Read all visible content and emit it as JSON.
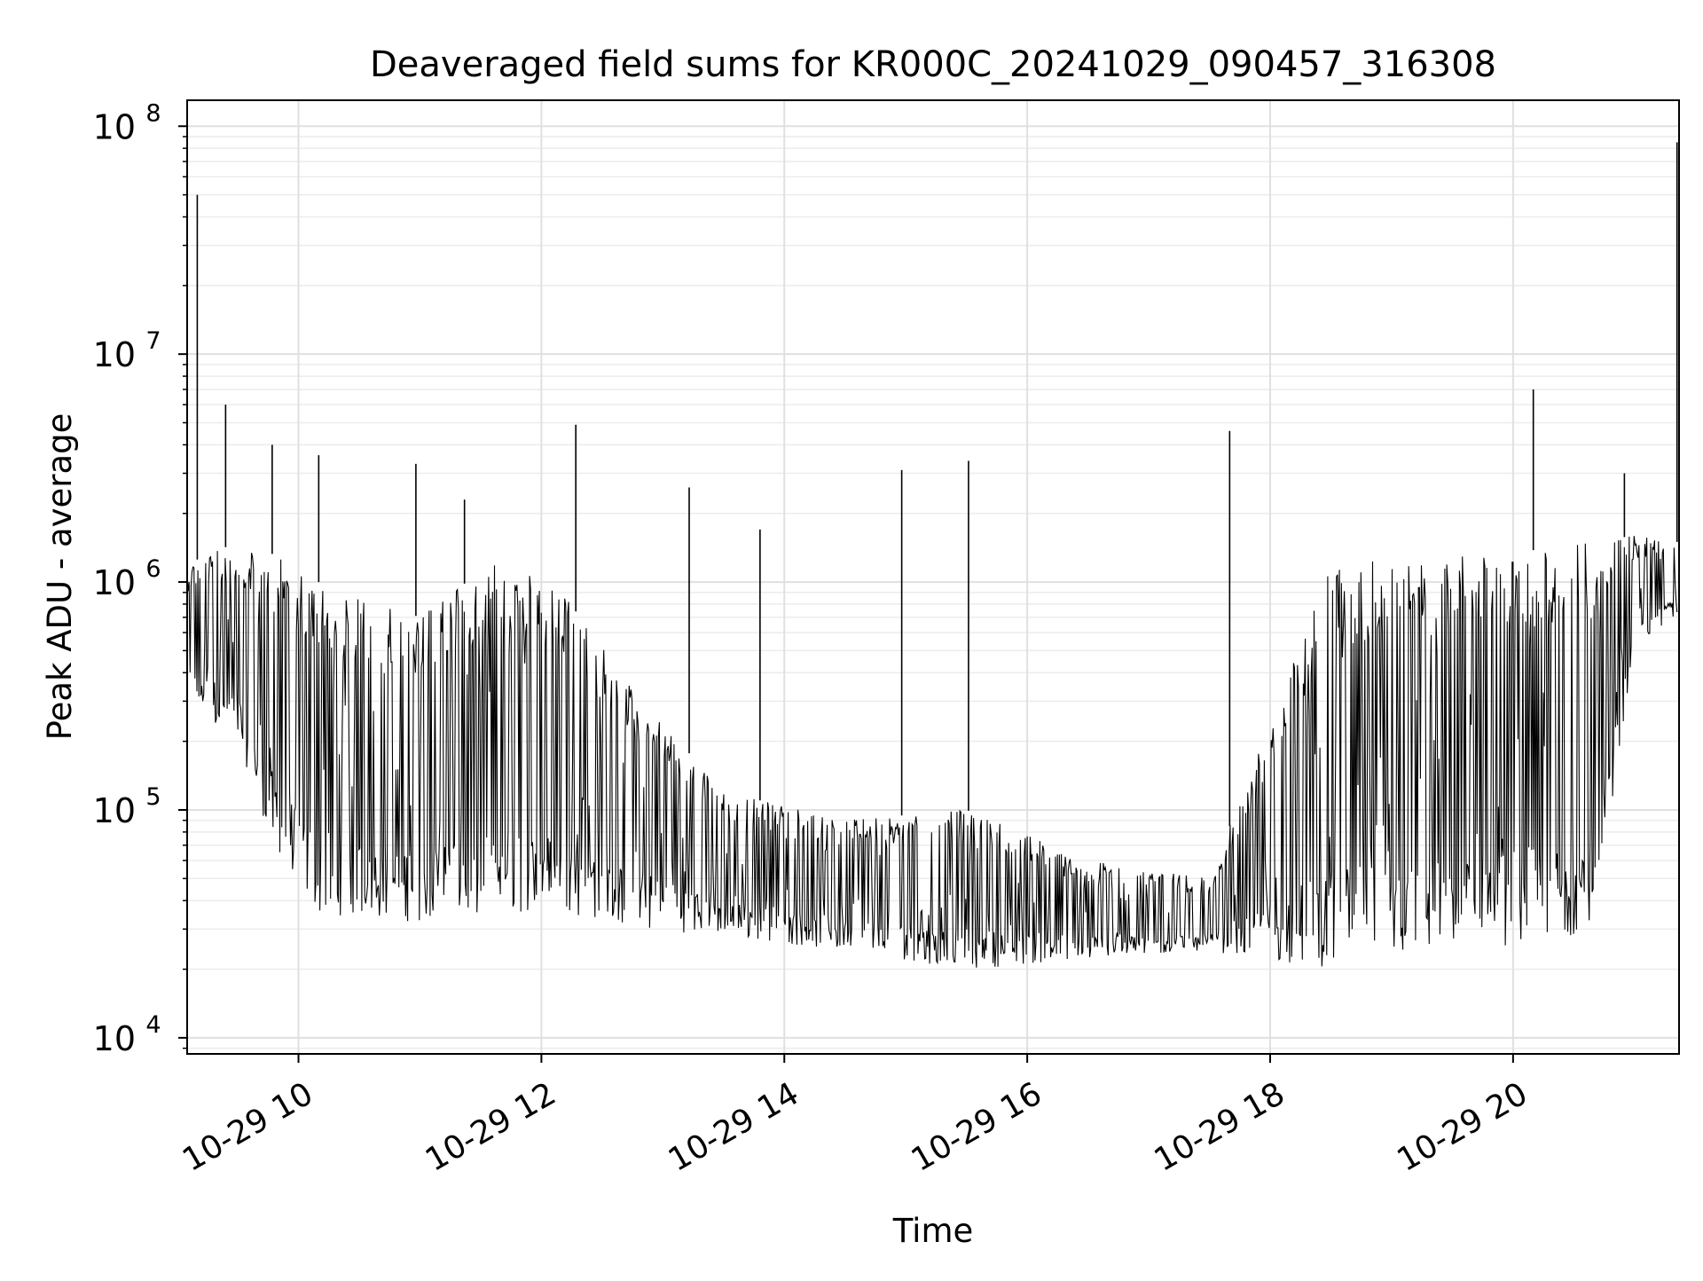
{
  "chart_data": {
    "type": "line",
    "title": "Deaveraged field sums for KR000C_20241029_090457_316308",
    "xlabel": "Time",
    "ylabel": "Peak ADU - average",
    "x_axis": {
      "kind": "datetime",
      "range": [
        "2024-10-29 09:05",
        "2024-10-29 21:22"
      ],
      "ticks": [
        "10-29 10",
        "10-29 12",
        "10-29 14",
        "10-29 16",
        "10-29 18",
        "10-29 20"
      ],
      "tick_values": [
        "2024-10-29 10:00",
        "2024-10-29 12:00",
        "2024-10-29 14:00",
        "2024-10-29 16:00",
        "2024-10-29 18:00",
        "2024-10-29 20:00"
      ],
      "tick_rotation_deg": 30
    },
    "y_axis": {
      "scale": "log",
      "range": [
        8500,
        130000000
      ],
      "ticks": [
        {
          "base": "10",
          "exp": "4",
          "value": 10000
        },
        {
          "base": "10",
          "exp": "5",
          "value": 100000
        },
        {
          "base": "10",
          "exp": "6",
          "value": 1000000
        },
        {
          "base": "10",
          "exp": "7",
          "value": 10000000
        },
        {
          "base": "10",
          "exp": "8",
          "value": 100000000
        }
      ]
    },
    "grid": true,
    "legend": "none",
    "series": [
      {
        "color": "#000000",
        "points_note": "dense noisy time series; representative samples",
        "points": [
          {
            "t": "2024-10-29 09:05",
            "v": 900000
          },
          {
            "t": "2024-10-29 09:10",
            "v": 50000000
          },
          {
            "t": "2024-10-29 09:24",
            "v": 6000000
          },
          {
            "t": "2024-10-29 09:47",
            "v": 4000000
          },
          {
            "t": "2024-10-29 10:10",
            "v": 3600000
          },
          {
            "t": "2024-10-29 10:58",
            "v": 3300000
          },
          {
            "t": "2024-10-29 11:22",
            "v": 2300000
          },
          {
            "t": "2024-10-29 12:17",
            "v": 4900000
          },
          {
            "t": "2024-10-29 13:13",
            "v": 2600000
          },
          {
            "t": "2024-10-29 13:48",
            "v": 1700000
          },
          {
            "t": "2024-10-29 14:58",
            "v": 3100000
          },
          {
            "t": "2024-10-29 15:31",
            "v": 3400000
          },
          {
            "t": "2024-10-29 17:40",
            "v": 4600000
          },
          {
            "t": "2024-10-29 20:10",
            "v": 7000000
          },
          {
            "t": "2024-10-29 20:55",
            "v": 3000000
          },
          {
            "t": "2024-10-29 21:21",
            "v": 85000000
          }
        ],
        "envelope": [
          {
            "t": "2024-10-29 09:05",
            "lo": 300000,
            "hi": 1200000
          },
          {
            "t": "2024-10-29 09:30",
            "lo": 200000,
            "hi": 1500000
          },
          {
            "t": "2024-10-29 09:50",
            "lo": 60000,
            "hi": 1300000
          },
          {
            "t": "2024-10-29 10:10",
            "lo": 35000,
            "hi": 1000000
          },
          {
            "t": "2024-10-29 11:00",
            "lo": 32000,
            "hi": 700000
          },
          {
            "t": "2024-10-29 11:40",
            "lo": 35000,
            "hi": 1300000
          },
          {
            "t": "2024-10-29 12:10",
            "lo": 35000,
            "hi": 900000
          },
          {
            "t": "2024-10-29 12:50",
            "lo": 30000,
            "hi": 300000
          },
          {
            "t": "2024-10-29 13:30",
            "lo": 28000,
            "hi": 120000
          },
          {
            "t": "2024-10-29 14:30",
            "lo": 24000,
            "hi": 90000
          },
          {
            "t": "2024-10-29 15:30",
            "lo": 20000,
            "hi": 100000
          },
          {
            "t": "2024-10-29 16:30",
            "lo": 22000,
            "hi": 60000
          },
          {
            "t": "2024-10-29 17:30",
            "lo": 24000,
            "hi": 50000
          },
          {
            "t": "2024-10-29 18:30",
            "lo": 20000,
            "hi": 1200000
          },
          {
            "t": "2024-10-29 19:30",
            "lo": 24000,
            "hi": 1300000
          },
          {
            "t": "2024-10-29 20:20",
            "lo": 26000,
            "hi": 1400000
          },
          {
            "t": "2024-10-29 20:40",
            "lo": 30000,
            "hi": 1500000
          },
          {
            "t": "2024-10-29 21:00",
            "lo": 500000,
            "hi": 1600000
          },
          {
            "t": "2024-10-29 21:20",
            "lo": 700000,
            "hi": 1500000
          }
        ]
      }
    ]
  }
}
